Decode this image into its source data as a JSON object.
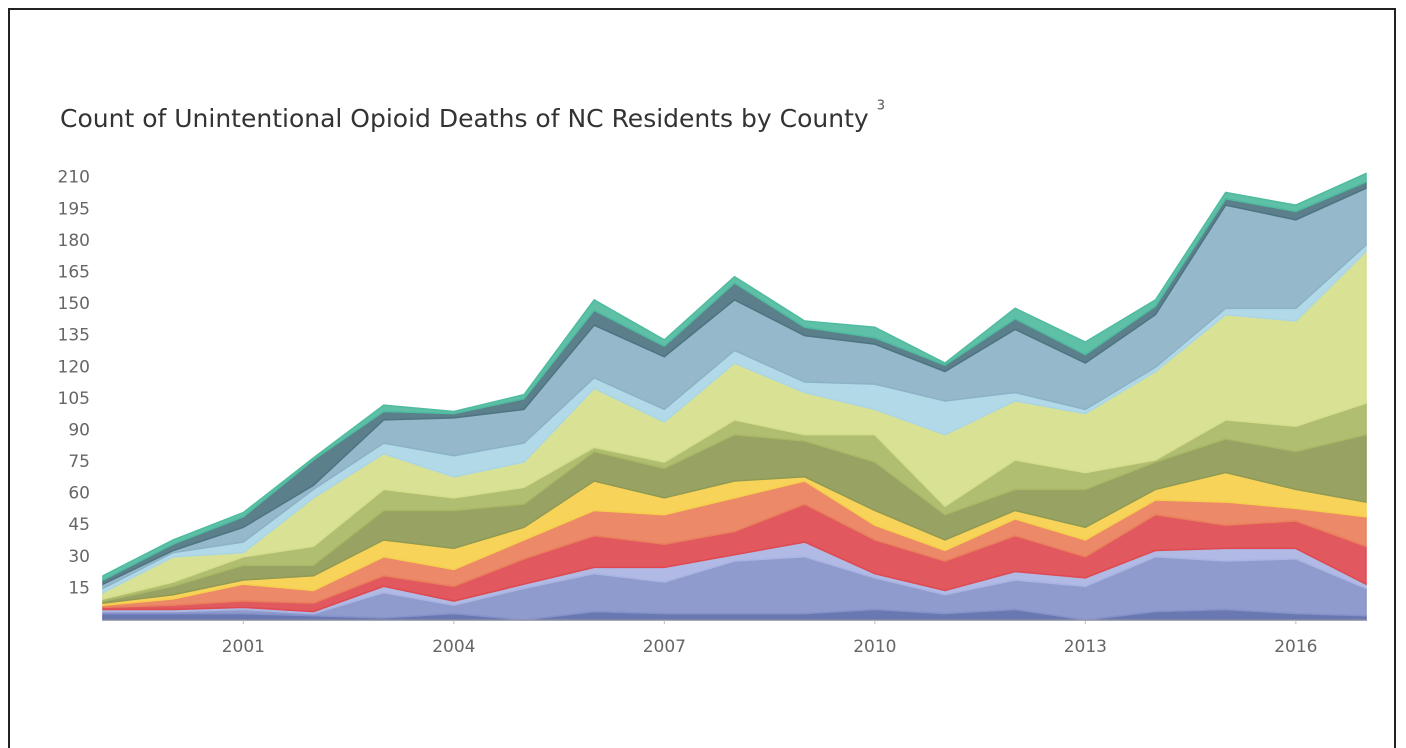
{
  "chart_data": {
    "type": "stacked_area",
    "title": "Count of Unintentional Opioid Deaths of NC Residents by County",
    "title_note": "3",
    "x": [
      1999,
      2000,
      2001,
      2002,
      2003,
      2004,
      2005,
      2006,
      2007,
      2008,
      2009,
      2010,
      2011,
      2012,
      2013,
      2014,
      2015,
      2016,
      2017
    ],
    "xlim": [
      1999,
      2017
    ],
    "xticks": [
      2001,
      2004,
      2007,
      2010,
      2013,
      2016
    ],
    "ylim": [
      0,
      217
    ],
    "yticks": [
      15,
      30,
      45,
      60,
      75,
      90,
      105,
      120,
      135,
      150,
      165,
      180,
      195,
      210
    ],
    "grid": false,
    "series": [
      {
        "color": "#5d6caa",
        "values": [
          3,
          3,
          3,
          2,
          1,
          3,
          0,
          4,
          3,
          3,
          3,
          5,
          3,
          5,
          0,
          4,
          5,
          3,
          2
        ]
      },
      {
        "color": "#8592c9",
        "values": [
          1,
          1,
          2,
          1,
          12,
          4,
          15,
          18,
          15,
          25,
          27,
          15,
          9,
          14,
          16,
          26,
          23,
          26,
          13
        ]
      },
      {
        "color": "#aab4e2",
        "values": [
          1,
          1,
          1,
          1,
          3,
          2,
          2,
          3,
          7,
          3,
          7,
          2,
          2,
          4,
          4,
          3,
          6,
          5,
          2
        ]
      },
      {
        "color": "#de4a50",
        "values": [
          1,
          2,
          3,
          4,
          5,
          7,
          12,
          15,
          11,
          11,
          18,
          16,
          14,
          17,
          10,
          17,
          11,
          13,
          18
        ]
      },
      {
        "color": "#e97f5c",
        "values": [
          1,
          3,
          8,
          6,
          9,
          8,
          9,
          12,
          14,
          16,
          11,
          7,
          5,
          8,
          8,
          7,
          11,
          6,
          14
        ]
      },
      {
        "color": "#f6cf4c",
        "values": [
          1,
          2,
          2,
          7,
          8,
          10,
          6,
          14,
          8,
          8,
          2,
          7,
          5,
          4,
          6,
          5,
          14,
          9,
          7
        ]
      },
      {
        "color": "#8f9a55",
        "values": [
          1,
          4,
          7,
          5,
          14,
          18,
          11,
          14,
          14,
          22,
          17,
          23,
          12,
          10,
          18,
          13,
          16,
          18,
          32
        ]
      },
      {
        "color": "#a9b866",
        "values": [
          1,
          2,
          4,
          9,
          10,
          6,
          8,
          2,
          3,
          7,
          3,
          13,
          4,
          14,
          8,
          1,
          9,
          12,
          15
        ]
      },
      {
        "color": "#d6de8c",
        "values": [
          3,
          12,
          2,
          23,
          17,
          10,
          12,
          28,
          19,
          27,
          20,
          12,
          34,
          28,
          28,
          42,
          50,
          50,
          72
        ]
      },
      {
        "color": "#abd6e6",
        "values": [
          2,
          2,
          5,
          4,
          5,
          10,
          9,
          5,
          6,
          6,
          5,
          12,
          16,
          4,
          2,
          2,
          3,
          6,
          3
        ]
      },
      {
        "color": "#8cb2c6",
        "values": [
          2,
          1,
          7,
          2,
          11,
          18,
          16,
          25,
          25,
          24,
          22,
          19,
          14,
          30,
          22,
          25,
          49,
          42,
          27
        ]
      },
      {
        "color": "#4e7482",
        "values": [
          2,
          3,
          5,
          12,
          4,
          2,
          5,
          7,
          5,
          8,
          4,
          3,
          3,
          5,
          4,
          4,
          3,
          4,
          3
        ]
      },
      {
        "color": "#4fbb9f",
        "values": [
          2,
          2,
          2,
          1,
          3,
          1,
          2,
          5,
          3,
          3,
          3,
          5,
          1,
          5,
          6,
          3,
          3,
          3,
          4
        ]
      }
    ]
  }
}
